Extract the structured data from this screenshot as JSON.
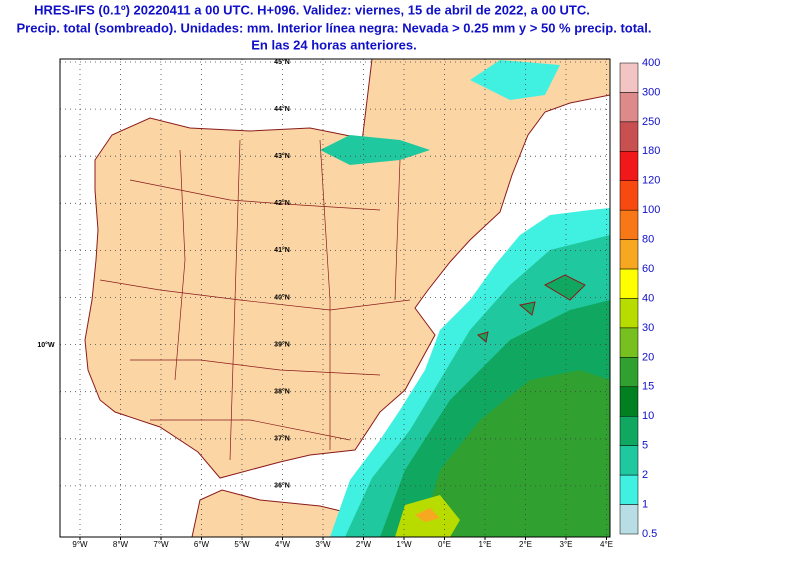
{
  "header": {
    "lines": [
      "HRES-IFS (0.1º) 20220411 a 00 UTC. H+096. Validez: viernes, 15 de abril de 2022, a 00 UTC.",
      "Precip. total (sombreado). Unidades: mm. Interior línea negra: Nevada > 0.25 mm y > 50 % precip. total.",
      "En las 24 horas anteriores."
    ]
  },
  "map": {
    "lat_labels": [
      "45°N",
      "44°N",
      "43°N",
      "42°N",
      "41°N",
      "40°N",
      "39°N",
      "38°N",
      "37°N",
      "36°N"
    ],
    "lon_labels": [
      "9°W",
      "8°W",
      "7°W",
      "6°W",
      "5°W",
      "4°W",
      "3°W",
      "2°W",
      "1°W",
      "0°E",
      "1°E",
      "2°E",
      "3°E",
      "4°E"
    ],
    "side_label": "10°W"
  },
  "colorbar": {
    "labels": [
      "400",
      "300",
      "250",
      "180",
      "120",
      "100",
      "80",
      "60",
      "40",
      "30",
      "20",
      "15",
      "10",
      "5",
      "2",
      "1",
      "0.5"
    ],
    "colors": [
      "#f2c4c4",
      "#dc8a8a",
      "#c85050",
      "#f01818",
      "#f84a10",
      "#f87818",
      "#f8a820",
      "#ffff00",
      "#b8dc00",
      "#78c020",
      "#30a030",
      "#008020",
      "#10a860",
      "#20c8a0",
      "#40f0e0",
      "#b8dde4"
    ]
  }
}
